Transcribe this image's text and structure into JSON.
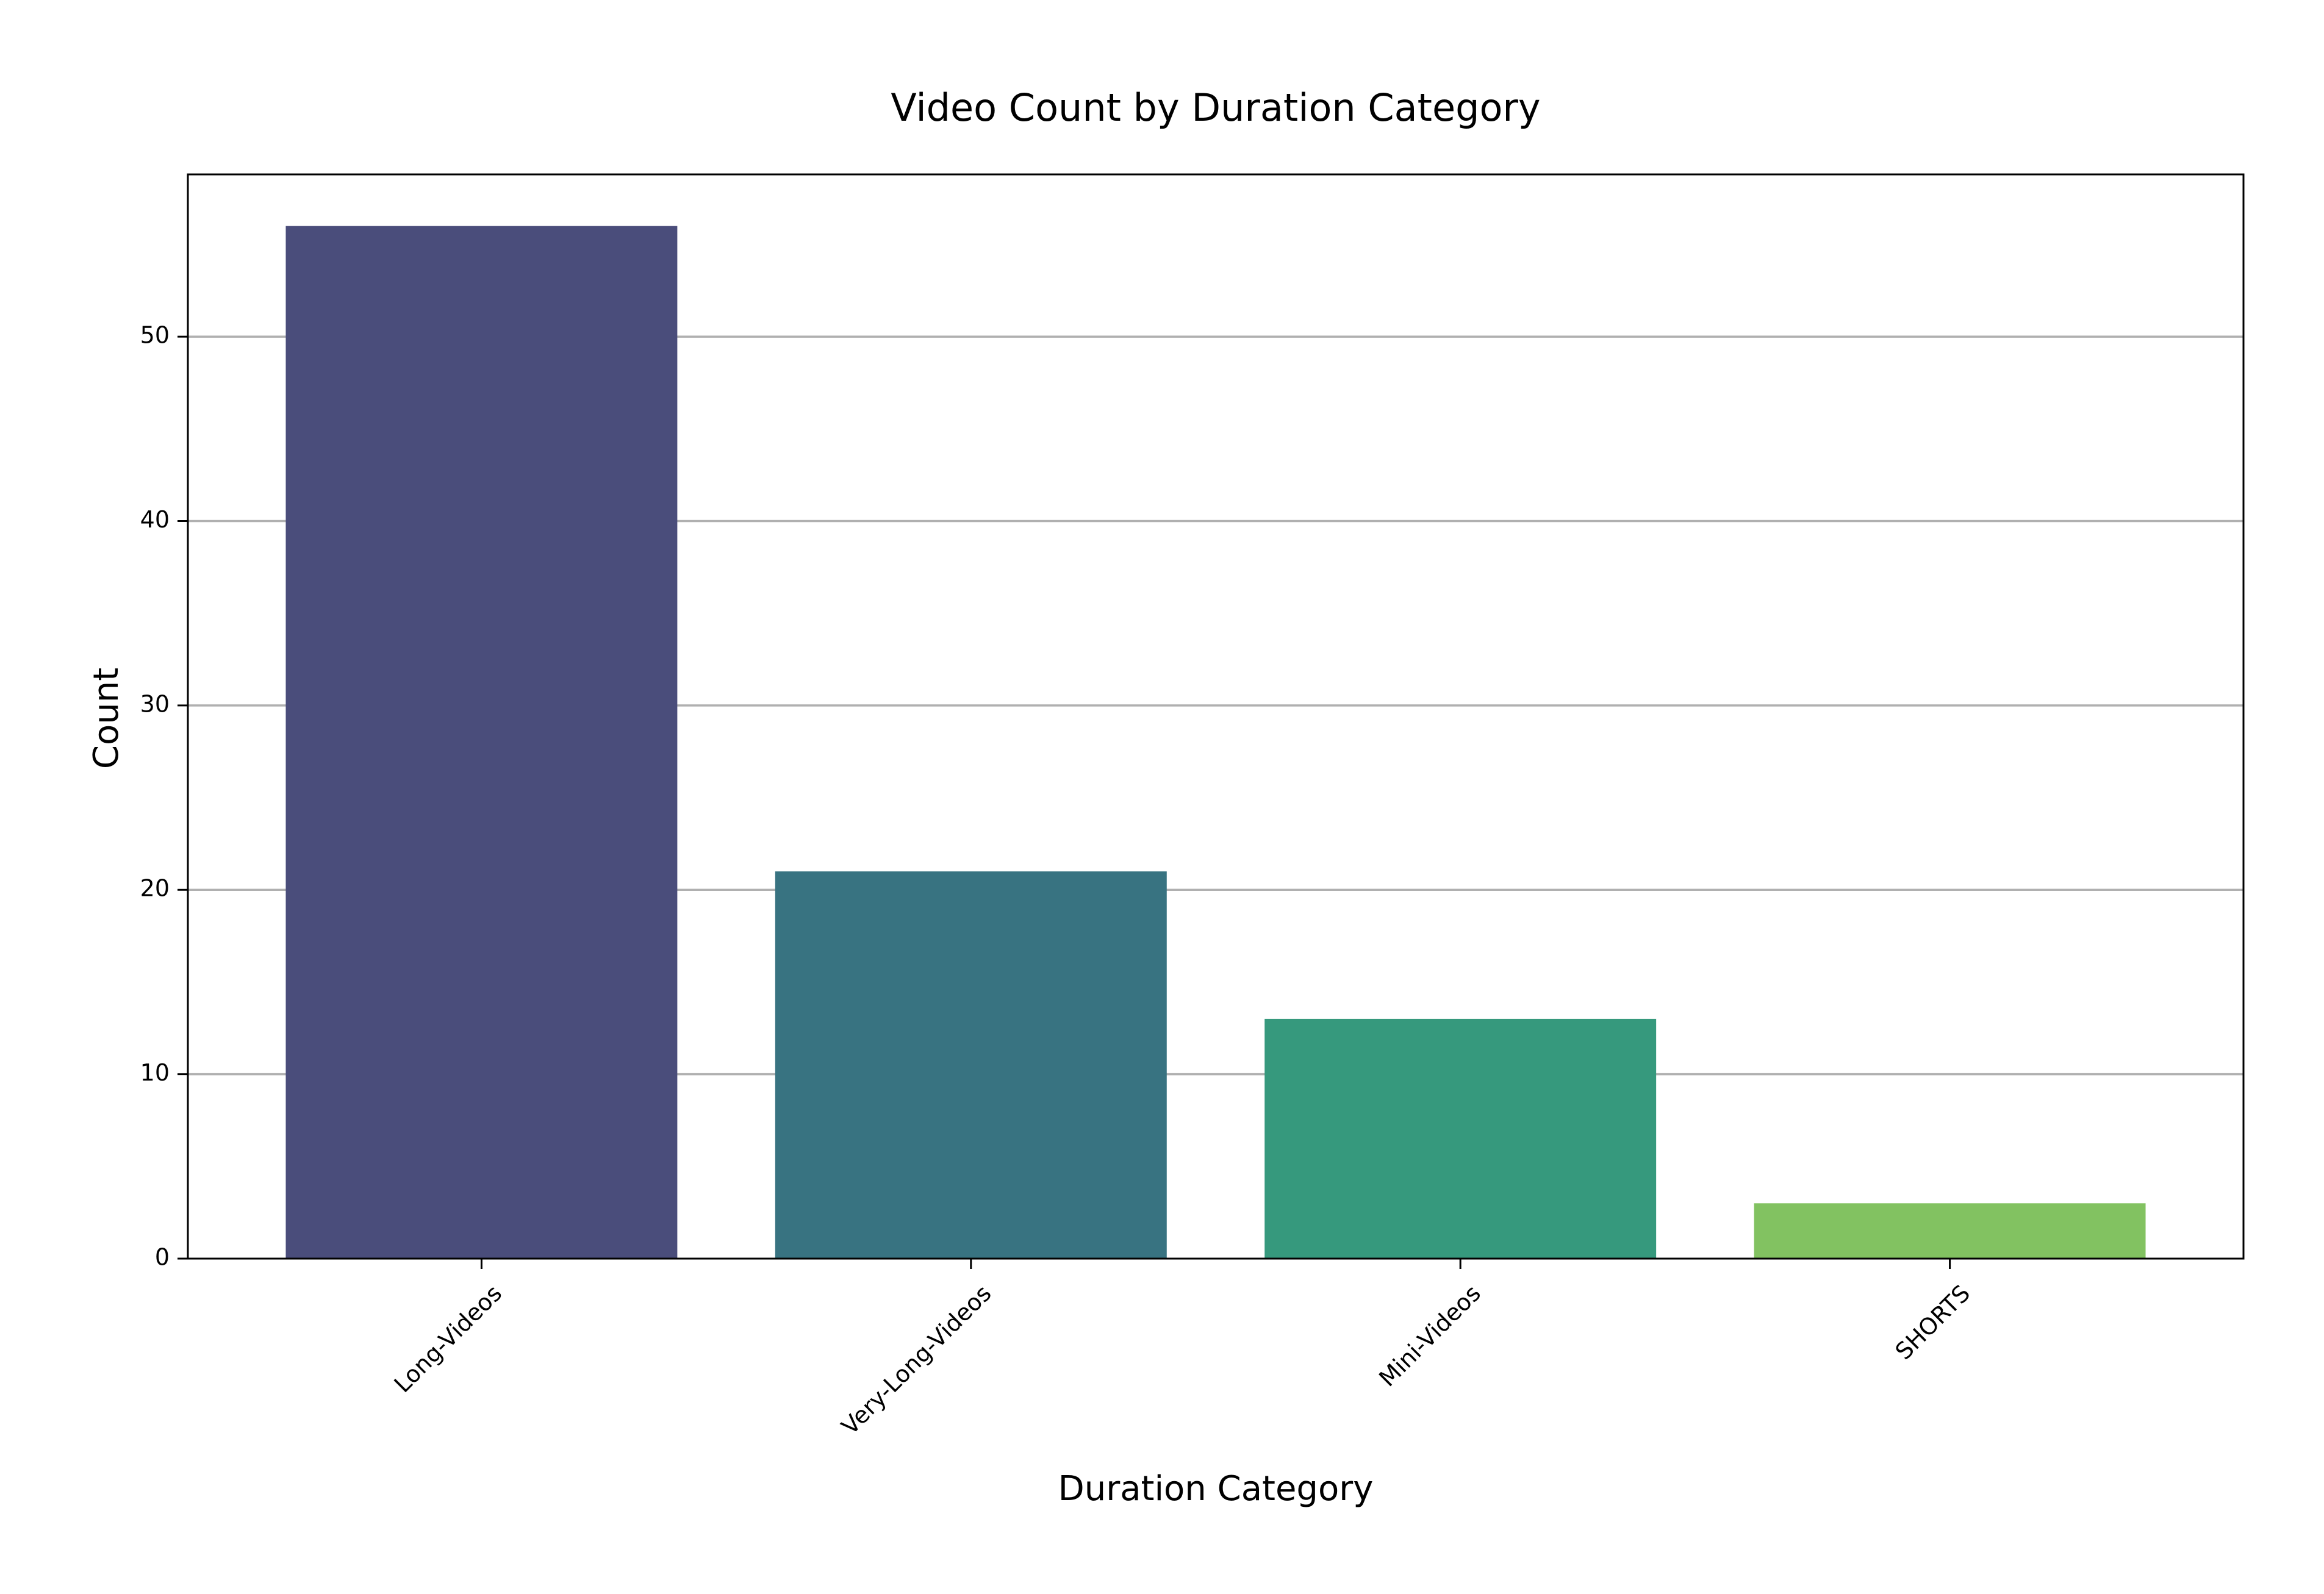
{
  "chart_data": {
    "type": "bar",
    "title": "Video Count by Duration Category",
    "xlabel": "Duration Category",
    "ylabel": "Count",
    "categories": [
      "Long-Videos",
      "Very-Long-Videos",
      "Mini-Videos",
      "SHORTS"
    ],
    "values": [
      56,
      21,
      13,
      3
    ],
    "colors": [
      "#4a4d7b",
      "#387381",
      "#36997d",
      "#82c261"
    ],
    "ylim": [
      0,
      58.8
    ],
    "yticks": [
      0,
      10,
      20,
      30,
      40,
      50
    ],
    "grid": "y-axis only",
    "legend": "none",
    "xtick_rotation_deg": 45
  }
}
